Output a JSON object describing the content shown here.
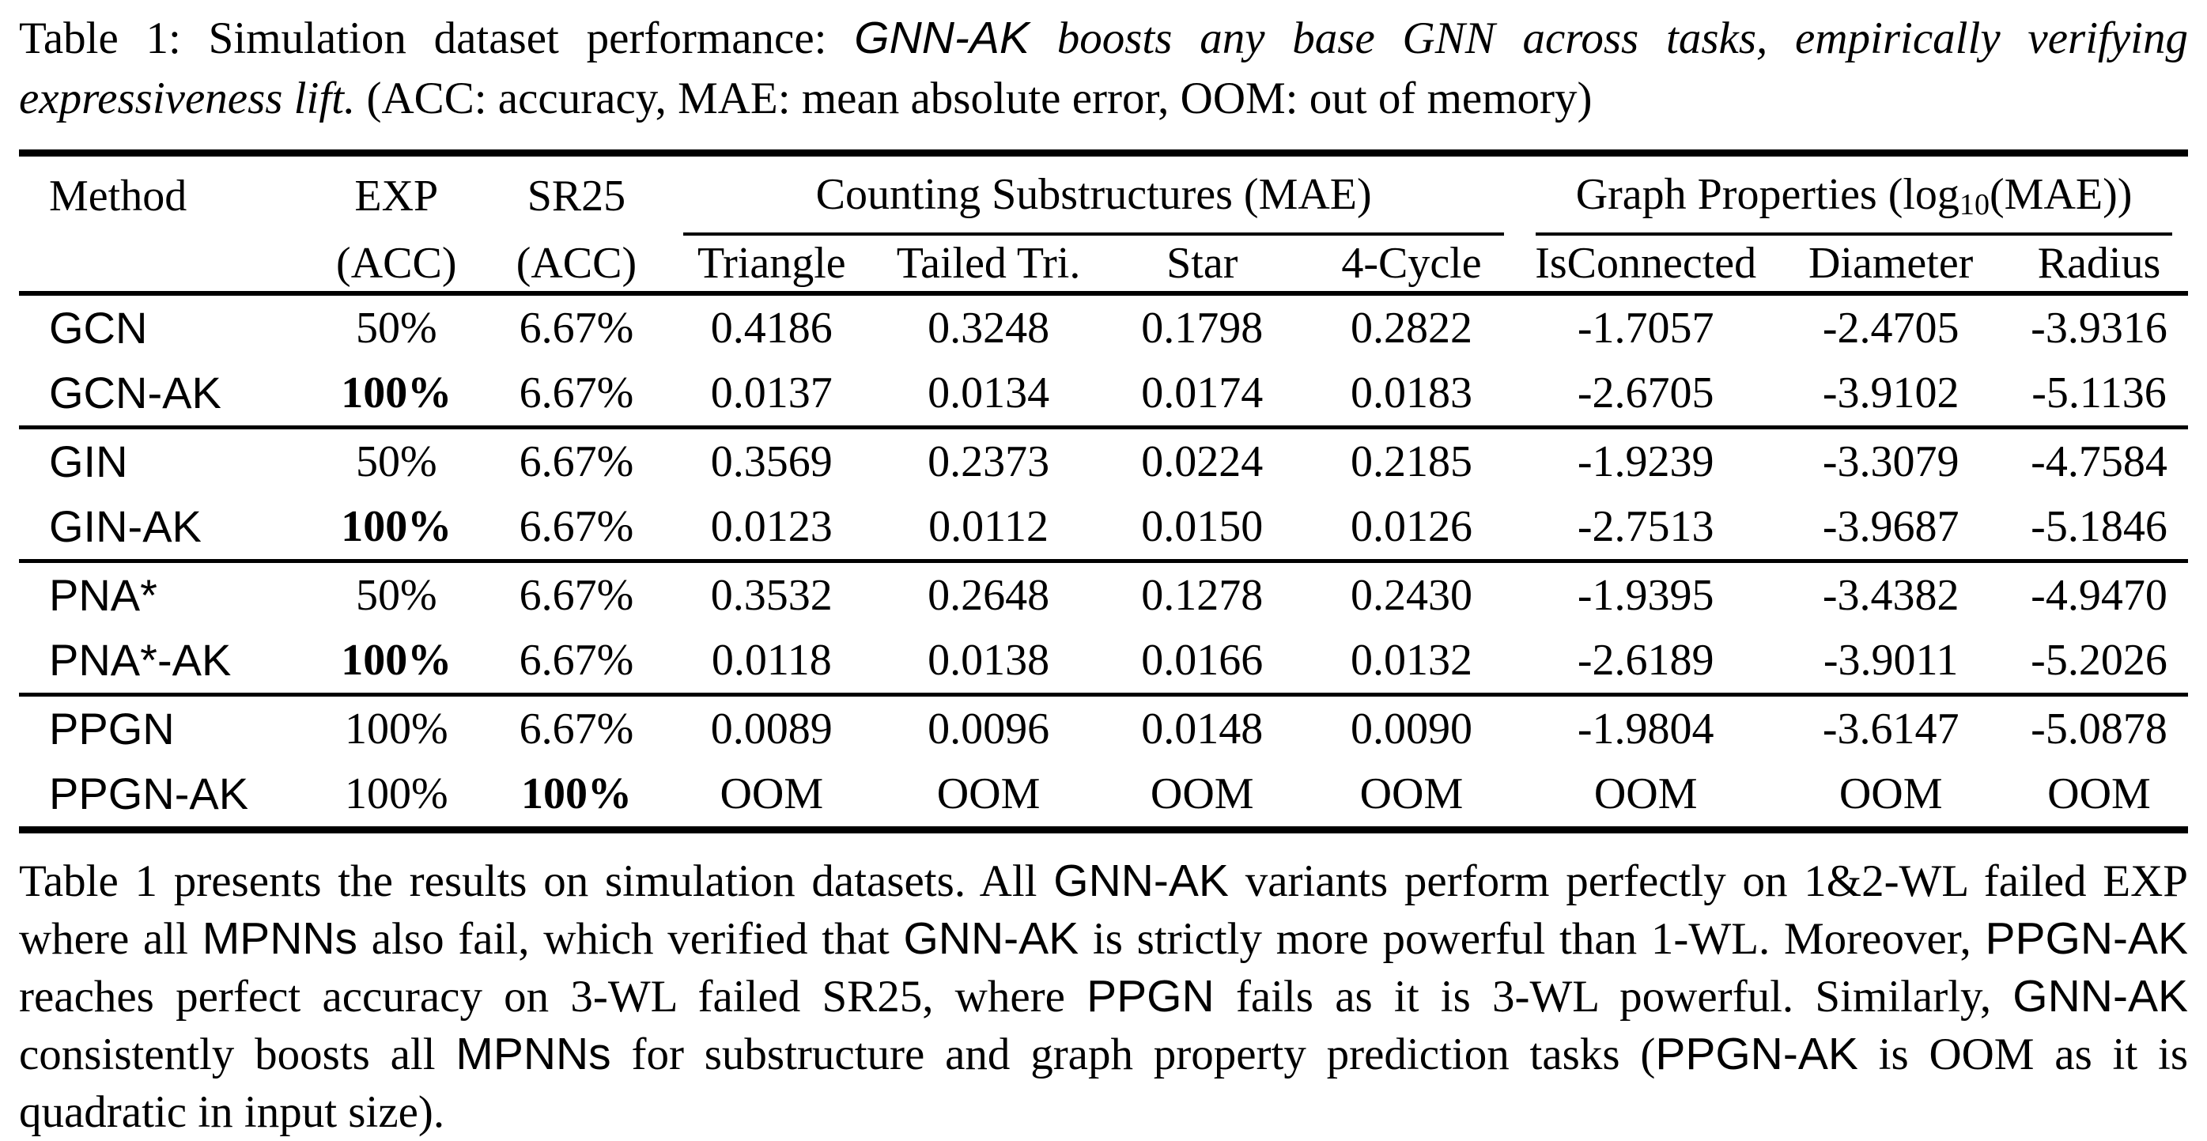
{
  "caption": {
    "segments": [
      {
        "t": "Table 1: Simulation dataset performance: ",
        "f": "rm"
      },
      {
        "t": "GNN-AK",
        "f": "sf-it"
      },
      {
        "t": " boosts any base GNN across tasks, empirically verifying expressiveness lift.",
        "f": "it"
      },
      {
        "t": " (ACC: accuracy, MAE: mean absolute error, OOM: out of memory)",
        "f": "rm"
      }
    ]
  },
  "table": {
    "header": {
      "method": "Method",
      "exp_line1": "EXP",
      "exp_line2": "(ACC)",
      "sr25_line1": "SR25",
      "sr25_line2": "(ACC)",
      "group_counting": "Counting Substructures (MAE)",
      "group_graph_pre": "Graph Properties (log",
      "group_graph_sub": "10",
      "group_graph_post": "(MAE))",
      "subcols": [
        "Triangle",
        "Tailed Tri.",
        "Star",
        "4-Cycle",
        "IsConnected",
        "Diameter",
        "Radius"
      ]
    },
    "groups": [
      {
        "rows": [
          {
            "method": "GCN",
            "values": [
              "50%",
              "6.67%",
              "0.4186",
              "0.3248",
              "0.1798",
              "0.2822",
              "-1.7057",
              "-2.4705",
              "-3.9316"
            ],
            "bold": []
          },
          {
            "method": "GCN-AK",
            "values": [
              "100%",
              "6.67%",
              "0.0137",
              "0.0134",
              "0.0174",
              "0.0183",
              "-2.6705",
              "-3.9102",
              "-5.1136"
            ],
            "bold": [
              0
            ]
          }
        ]
      },
      {
        "rows": [
          {
            "method": "GIN",
            "values": [
              "50%",
              "6.67%",
              "0.3569",
              "0.2373",
              "0.0224",
              "0.2185",
              "-1.9239",
              "-3.3079",
              "-4.7584"
            ],
            "bold": []
          },
          {
            "method": "GIN-AK",
            "values": [
              "100%",
              "6.67%",
              "0.0123",
              "0.0112",
              "0.0150",
              "0.0126",
              "-2.7513",
              "-3.9687",
              "-5.1846"
            ],
            "bold": [
              0
            ]
          }
        ]
      },
      {
        "rows": [
          {
            "method": "PNA*",
            "values": [
              "50%",
              "6.67%",
              "0.3532",
              "0.2648",
              "0.1278",
              "0.2430",
              "-1.9395",
              "-3.4382",
              "-4.9470"
            ],
            "bold": []
          },
          {
            "method": "PNA*-AK",
            "values": [
              "100%",
              "6.67%",
              "0.0118",
              "0.0138",
              "0.0166",
              "0.0132",
              "-2.6189",
              "-3.9011",
              "-5.2026"
            ],
            "bold": [
              0
            ]
          }
        ]
      },
      {
        "rows": [
          {
            "method": "PPGN",
            "values": [
              "100%",
              "6.67%",
              "0.0089",
              "0.0096",
              "0.0148",
              "0.0090",
              "-1.9804",
              "-3.6147",
              "-5.0878"
            ],
            "bold": []
          },
          {
            "method": "PPGN-AK",
            "values": [
              "100%",
              "100%",
              "OOM",
              "OOM",
              "OOM",
              "OOM",
              "OOM",
              "OOM",
              "OOM"
            ],
            "bold": [
              1
            ]
          }
        ]
      }
    ]
  },
  "paragraph": {
    "segments": [
      {
        "t": "Table 1 presents the results on simulation datasets. All ",
        "f": "rm"
      },
      {
        "t": "GNN-AK",
        "f": "sf"
      },
      {
        "t": " variants perform perfectly on 1&2-WL failed EXP where all ",
        "f": "rm"
      },
      {
        "t": "MPNNs",
        "f": "sf"
      },
      {
        "t": " also fail, which verified that ",
        "f": "rm"
      },
      {
        "t": "GNN-AK",
        "f": "sf"
      },
      {
        "t": " is strictly more powerful than 1-WL. Moreover, ",
        "f": "rm"
      },
      {
        "t": "PPGN-AK",
        "f": "sf"
      },
      {
        "t": " reaches perfect accuracy on 3-WL failed SR25, where ",
        "f": "rm"
      },
      {
        "t": "PPGN",
        "f": "sf"
      },
      {
        "t": " fails as it is 3-WL powerful. Similarly, ",
        "f": "rm"
      },
      {
        "t": "GNN-AK",
        "f": "sf"
      },
      {
        "t": " consistently boosts all ",
        "f": "rm"
      },
      {
        "t": "MPNNs",
        "f": "sf"
      },
      {
        "t": " for substructure and graph property prediction tasks (",
        "f": "rm"
      },
      {
        "t": "PPGN-AK",
        "f": "sf"
      },
      {
        "t": " is OOM as it is quadratic in input size).",
        "f": "rm"
      }
    ]
  }
}
